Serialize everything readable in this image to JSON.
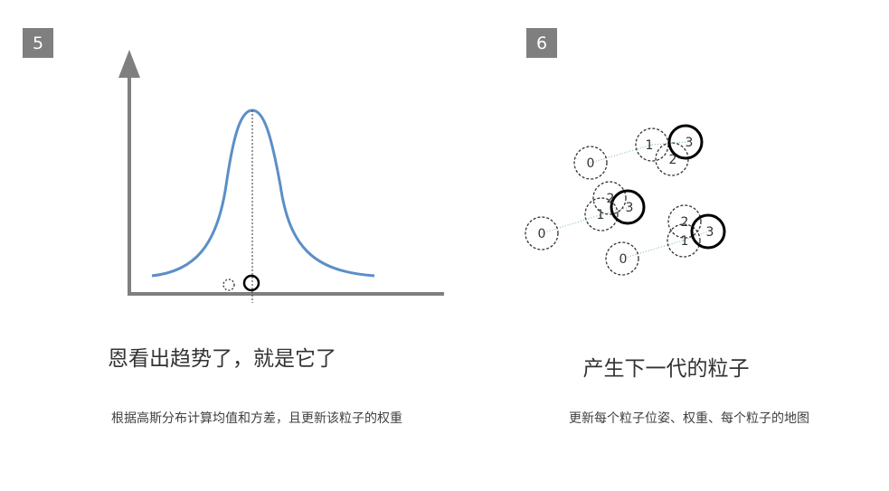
{
  "left": {
    "step": "5",
    "title": "恩看出趋势了，就是它了",
    "description": "根据高斯分布计算均值和方差，且更新该粒子的权重"
  },
  "right": {
    "step": "6",
    "title": "产生下一代的粒子",
    "description": "更新每个粒子位姿、权重、每个粒子的地图",
    "particles": [
      {
        "label": "0",
        "style": "dashed"
      },
      {
        "label": "1",
        "style": "dashed"
      },
      {
        "label": "2",
        "style": "dashed"
      },
      {
        "label": "3",
        "style": "solid"
      }
    ]
  },
  "colors": {
    "curve": "#5b8fc7",
    "axis": "#7f7f7f",
    "badge": "#7f7f7f",
    "trail": "#7fb3b3"
  }
}
